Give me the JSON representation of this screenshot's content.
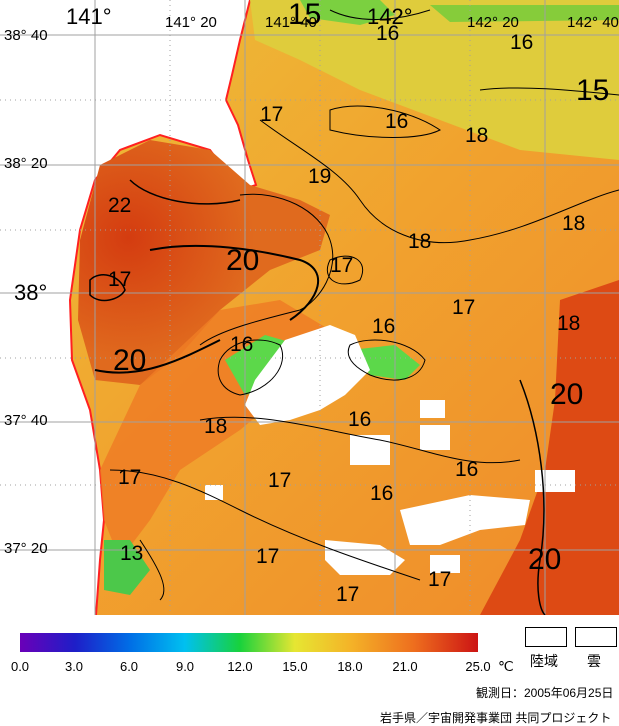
{
  "map_labels": {
    "lon_top": [
      "141°",
      "141°  20",
      "141°  40",
      "142°",
      "142°  20",
      "142°  40"
    ],
    "lat_left": [
      "38°  40",
      "38°  20",
      "38°",
      "37°  40",
      "37°  20"
    ],
    "contours": [
      "15",
      "16",
      "15",
      "16",
      "17",
      "16",
      "18",
      "19",
      "22",
      "18",
      "20",
      "17",
      "18",
      "17",
      "16",
      "17",
      "18",
      "20",
      "16",
      "20",
      "16",
      "18",
      "16",
      "17",
      "16",
      "17",
      "13",
      "17",
      "20",
      "17",
      "17"
    ]
  },
  "legend": {
    "ticks": [
      "0.0",
      "3.0",
      "6.0",
      "9.0",
      "12.0",
      "15.0",
      "18.0",
      "21.0",
      "25.0"
    ],
    "unit": "℃",
    "land_label": "陸域",
    "cloud_label": "雲"
  },
  "footer": {
    "observation_date": "観測日：2005年06月25日",
    "credit": "岩手県／宇宙開発事業団  共同プロジェクト"
  },
  "colors": {
    "coast": "#ff2020",
    "grid": "#a0a0a0",
    "warm": "#dd4a14",
    "mid": "#f08a26",
    "cool": "#e9c53a",
    "green": "#5cd84a"
  }
}
